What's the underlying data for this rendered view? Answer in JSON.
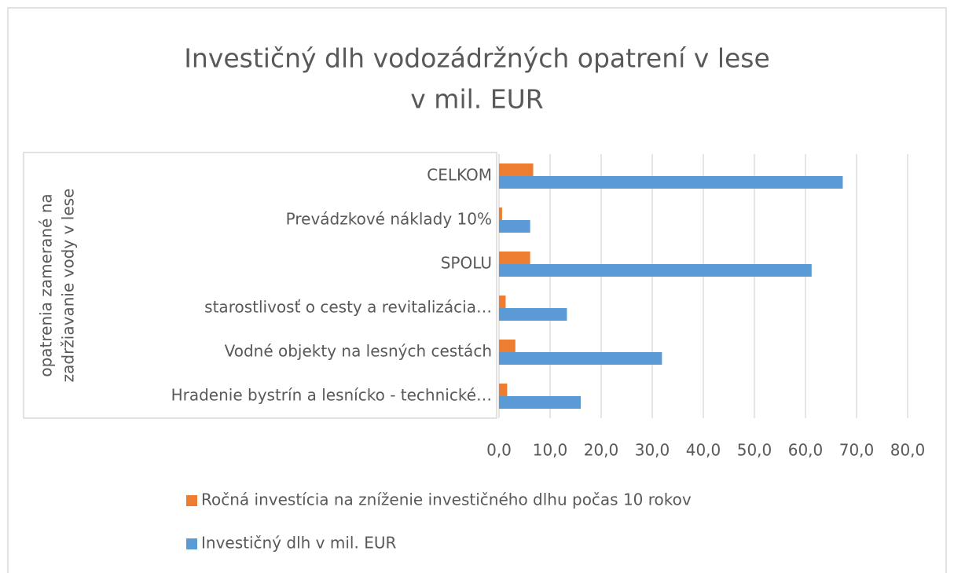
{
  "chart_data": {
    "type": "hbar",
    "title": [
      "Investičný dlh vodozádržných opatrení v lese",
      "v mil. EUR"
    ],
    "y_label": [
      "opatrenia zamerané na",
      "zadržiavanie vody v lese"
    ],
    "categories": [
      "Hradenie bystrín a lesnícko - technické…",
      "Vodné objekty na lesných cestách",
      "starostlivosť o cesty a revitalizácia…",
      "SPOLU",
      "Prevádzkové náklady 10%",
      "CELKOM"
    ],
    "series": [
      {
        "name": "Ročná investícia na zníženie investičného dlhu počas 10 rokov",
        "color": "#ed7d31",
        "values": [
          1.6,
          3.2,
          1.3,
          6.1,
          0.6,
          6.7
        ]
      },
      {
        "name": "Investičný dlh v mil. EUR",
        "color": "#5b9bd5",
        "values": [
          16.0,
          31.9,
          13.3,
          61.2,
          6.1,
          67.3
        ]
      }
    ],
    "xlim": [
      0,
      80
    ],
    "xticks": [
      {
        "value": 0,
        "label": "0,0"
      },
      {
        "value": 10,
        "label": "10,0"
      },
      {
        "value": 20,
        "label": "20,0"
      },
      {
        "value": 30,
        "label": "30,0"
      },
      {
        "value": 40,
        "label": "40,0"
      },
      {
        "value": 50,
        "label": "50,0"
      },
      {
        "value": 60,
        "label": "60,0"
      },
      {
        "value": 70,
        "label": "70,0"
      },
      {
        "value": 80,
        "label": "80,0"
      }
    ],
    "grid": true
  }
}
